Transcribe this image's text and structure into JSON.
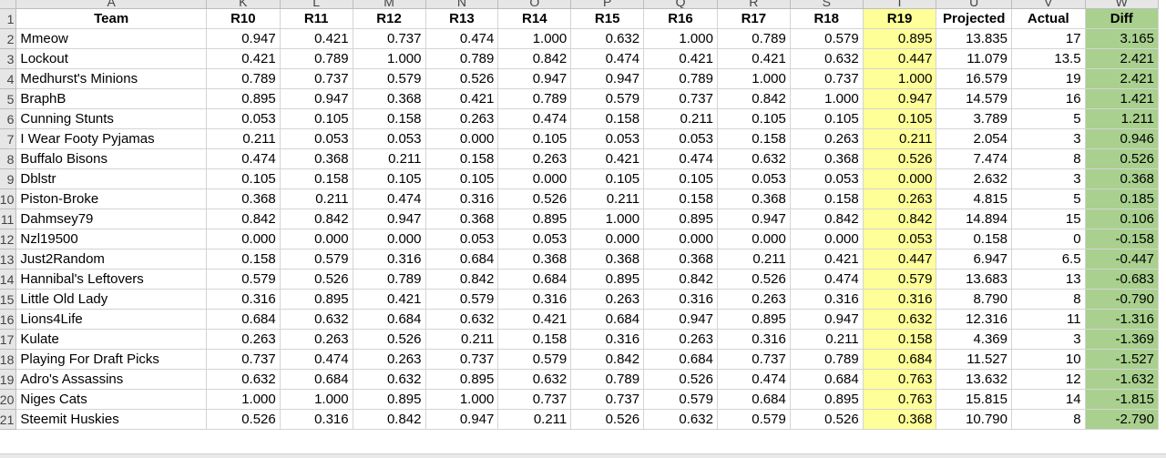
{
  "column_letters": [
    "A",
    "K",
    "L",
    "M",
    "N",
    "O",
    "P",
    "Q",
    "R",
    "S",
    "T",
    "U",
    "V",
    "W"
  ],
  "header_row_number": "1",
  "headers": [
    "Team",
    "R10",
    "R11",
    "R12",
    "R13",
    "R14",
    "R15",
    "R16",
    "R17",
    "R18",
    "R19",
    "Projected",
    "Actual",
    "Diff"
  ],
  "rows": [
    {
      "num": "2",
      "team": "Mmeow",
      "r": [
        "0.947",
        "0.421",
        "0.737",
        "0.474",
        "1.000",
        "0.632",
        "1.000",
        "0.789",
        "0.579",
        "0.895"
      ],
      "projected": "13.835",
      "actual": "17",
      "diff": "3.165"
    },
    {
      "num": "3",
      "team": "Lockout",
      "r": [
        "0.421",
        "0.789",
        "1.000",
        "0.789",
        "0.842",
        "0.474",
        "0.421",
        "0.421",
        "0.632",
        "0.447"
      ],
      "projected": "11.079",
      "actual": "13.5",
      "diff": "2.421"
    },
    {
      "num": "4",
      "team": "Medhurst's Minions",
      "r": [
        "0.789",
        "0.737",
        "0.579",
        "0.526",
        "0.947",
        "0.947",
        "0.789",
        "1.000",
        "0.737",
        "1.000"
      ],
      "projected": "16.579",
      "actual": "19",
      "diff": "2.421"
    },
    {
      "num": "5",
      "team": "BraphB",
      "r": [
        "0.895",
        "0.947",
        "0.368",
        "0.421",
        "0.789",
        "0.579",
        "0.737",
        "0.842",
        "1.000",
        "0.947"
      ],
      "projected": "14.579",
      "actual": "16",
      "diff": "1.421"
    },
    {
      "num": "6",
      "team": "Cunning Stunts",
      "r": [
        "0.053",
        "0.105",
        "0.158",
        "0.263",
        "0.474",
        "0.158",
        "0.211",
        "0.105",
        "0.105",
        "0.105"
      ],
      "projected": "3.789",
      "actual": "5",
      "diff": "1.211"
    },
    {
      "num": "7",
      "team": "I Wear Footy Pyjamas",
      "r": [
        "0.211",
        "0.053",
        "0.053",
        "0.000",
        "0.105",
        "0.053",
        "0.053",
        "0.158",
        "0.263",
        "0.211"
      ],
      "projected": "2.054",
      "actual": "3",
      "diff": "0.946"
    },
    {
      "num": "8",
      "team": "Buffalo Bisons",
      "r": [
        "0.474",
        "0.368",
        "0.211",
        "0.158",
        "0.263",
        "0.421",
        "0.474",
        "0.632",
        "0.368",
        "0.526"
      ],
      "projected": "7.474",
      "actual": "8",
      "diff": "0.526"
    },
    {
      "num": "9",
      "team": "Dblstr",
      "r": [
        "0.105",
        "0.158",
        "0.105",
        "0.105",
        "0.000",
        "0.105",
        "0.105",
        "0.053",
        "0.053",
        "0.000"
      ],
      "projected": "2.632",
      "actual": "3",
      "diff": "0.368"
    },
    {
      "num": "10",
      "team": "Piston-Broke",
      "r": [
        "0.368",
        "0.211",
        "0.474",
        "0.316",
        "0.526",
        "0.211",
        "0.158",
        "0.368",
        "0.158",
        "0.263"
      ],
      "projected": "4.815",
      "actual": "5",
      "diff": "0.185"
    },
    {
      "num": "11",
      "team": "Dahmsey79",
      "r": [
        "0.842",
        "0.842",
        "0.947",
        "0.368",
        "0.895",
        "1.000",
        "0.895",
        "0.947",
        "0.842",
        "0.842"
      ],
      "projected": "14.894",
      "actual": "15",
      "diff": "0.106"
    },
    {
      "num": "12",
      "team": "Nzl19500",
      "r": [
        "0.000",
        "0.000",
        "0.000",
        "0.053",
        "0.053",
        "0.000",
        "0.000",
        "0.000",
        "0.000",
        "0.053"
      ],
      "projected": "0.158",
      "actual": "0",
      "diff": "-0.158"
    },
    {
      "num": "13",
      "team": "Just2Random",
      "r": [
        "0.158",
        "0.579",
        "0.316",
        "0.684",
        "0.368",
        "0.368",
        "0.368",
        "0.211",
        "0.421",
        "0.447"
      ],
      "projected": "6.947",
      "actual": "6.5",
      "diff": "-0.447"
    },
    {
      "num": "14",
      "team": "Hannibal's Leftovers",
      "r": [
        "0.579",
        "0.526",
        "0.789",
        "0.842",
        "0.684",
        "0.895",
        "0.842",
        "0.526",
        "0.474",
        "0.579"
      ],
      "projected": "13.683",
      "actual": "13",
      "diff": "-0.683"
    },
    {
      "num": "15",
      "team": "Little Old Lady",
      "r": [
        "0.316",
        "0.895",
        "0.421",
        "0.579",
        "0.316",
        "0.263",
        "0.316",
        "0.263",
        "0.316",
        "0.316"
      ],
      "projected": "8.790",
      "actual": "8",
      "diff": "-0.790"
    },
    {
      "num": "16",
      "team": "Lions4Life",
      "r": [
        "0.684",
        "0.632",
        "0.684",
        "0.632",
        "0.421",
        "0.684",
        "0.947",
        "0.895",
        "0.947",
        "0.632"
      ],
      "projected": "12.316",
      "actual": "11",
      "diff": "-1.316"
    },
    {
      "num": "17",
      "team": "Kulate",
      "r": [
        "0.263",
        "0.263",
        "0.526",
        "0.211",
        "0.158",
        "0.316",
        "0.263",
        "0.316",
        "0.211",
        "0.158"
      ],
      "projected": "4.369",
      "actual": "3",
      "diff": "-1.369"
    },
    {
      "num": "18",
      "team": "Playing For Draft Picks",
      "r": [
        "0.737",
        "0.474",
        "0.263",
        "0.737",
        "0.579",
        "0.842",
        "0.684",
        "0.737",
        "0.789",
        "0.684"
      ],
      "projected": "11.527",
      "actual": "10",
      "diff": "-1.527"
    },
    {
      "num": "19",
      "team": "Adro's Assassins",
      "r": [
        "0.632",
        "0.684",
        "0.632",
        "0.895",
        "0.632",
        "0.789",
        "0.526",
        "0.474",
        "0.684",
        "0.763"
      ],
      "projected": "13.632",
      "actual": "12",
      "diff": "-1.632"
    },
    {
      "num": "20",
      "team": "Niges Cats",
      "r": [
        "1.000",
        "1.000",
        "0.895",
        "1.000",
        "0.737",
        "0.737",
        "0.579",
        "0.684",
        "0.895",
        "0.763"
      ],
      "projected": "15.815",
      "actual": "14",
      "diff": "-1.815"
    },
    {
      "num": "21",
      "team": "Steemit Huskies",
      "r": [
        "0.526",
        "0.316",
        "0.842",
        "0.947",
        "0.211",
        "0.526",
        "0.632",
        "0.579",
        "0.526",
        "0.368"
      ],
      "projected": "10.790",
      "actual": "8",
      "diff": "-2.790"
    }
  ],
  "colors": {
    "r19_highlight": "#ffff99",
    "diff_highlight": "#a9d08e"
  }
}
